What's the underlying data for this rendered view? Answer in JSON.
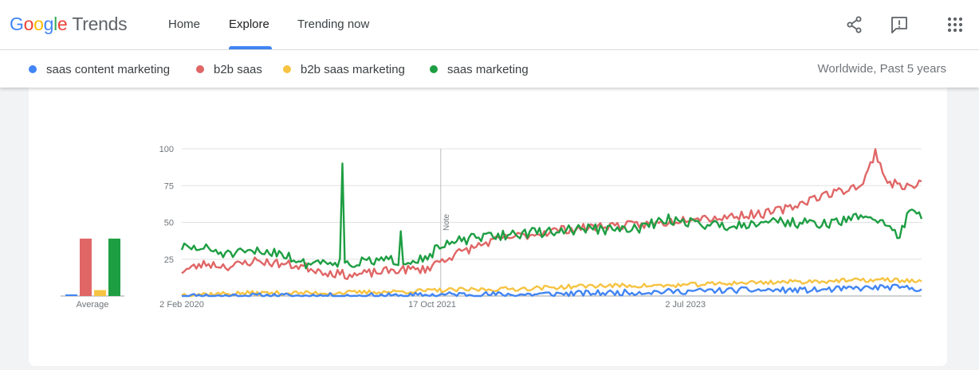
{
  "header": {
    "logo": {
      "google": [
        "G",
        "o",
        "o",
        "g",
        "l",
        "e"
      ],
      "google_colors": [
        "#4285f4",
        "#ea4335",
        "#fbbc05",
        "#4285f4",
        "#34a853",
        "#ea4335"
      ],
      "product": "Trends"
    },
    "tabs": [
      {
        "label": "Home",
        "active": false
      },
      {
        "label": "Explore",
        "active": true
      },
      {
        "label": "Trending now",
        "active": false
      }
    ],
    "icons": [
      "share-icon",
      "feedback-icon",
      "apps-grid-icon"
    ],
    "accent": "#4285f4"
  },
  "compare": {
    "terms": [
      {
        "label": "saas content marketing",
        "color": "#4285f4"
      },
      {
        "label": "b2b saas",
        "color": "#e06666"
      },
      {
        "label": "b2b saas marketing",
        "color": "#f6c342"
      },
      {
        "label": "saas marketing",
        "color": "#1e9e43"
      }
    ],
    "scope": "Worldwide, Past 5 years"
  },
  "chart_data": {
    "type": "line",
    "x_ticks": [
      "2 Feb 2020",
      "17 Oct 2021",
      "2 Jul 2023"
    ],
    "y_ticks": [
      100,
      75,
      50,
      25
    ],
    "ylim": [
      0,
      100
    ],
    "xlim": [
      "2 Feb 2020",
      "26 Jan 2025"
    ],
    "grid": true,
    "annotation": {
      "label": "Note",
      "x": "7 Nov 2021"
    },
    "averages": {
      "label": "Average",
      "values": [
        1,
        39,
        4,
        39
      ]
    },
    "series": [
      {
        "name": "saas content marketing",
        "color": "#4285f4",
        "keypoints": [
          [
            0,
            0
          ],
          [
            30,
            0
          ],
          [
            60,
            0
          ],
          [
            90,
            0
          ],
          [
            110,
            1
          ],
          [
            140,
            1
          ],
          [
            170,
            2
          ],
          [
            200,
            3
          ],
          [
            230,
            4
          ],
          [
            260,
            4
          ],
          [
            290,
            6
          ],
          [
            304,
            5
          ]
        ],
        "jitter": 2,
        "seed": 11
      },
      {
        "name": "b2b saas",
        "color": "#e06666",
        "keypoints": [
          [
            0,
            17
          ],
          [
            10,
            22
          ],
          [
            20,
            20
          ],
          [
            30,
            24
          ],
          [
            40,
            22
          ],
          [
            50,
            20
          ],
          [
            60,
            16
          ],
          [
            70,
            14
          ],
          [
            80,
            16
          ],
          [
            90,
            18
          ],
          [
            100,
            18
          ],
          [
            105,
            23
          ],
          [
            115,
            30
          ],
          [
            125,
            36
          ],
          [
            135,
            40
          ],
          [
            145,
            42
          ],
          [
            155,
            45
          ],
          [
            165,
            46
          ],
          [
            175,
            48
          ],
          [
            185,
            48
          ],
          [
            200,
            50
          ],
          [
            210,
            54
          ],
          [
            220,
            53
          ],
          [
            230,
            55
          ],
          [
            240,
            56
          ],
          [
            250,
            60
          ],
          [
            260,
            67
          ],
          [
            270,
            71
          ],
          [
            280,
            76
          ],
          [
            285,
            98
          ],
          [
            290,
            77
          ],
          [
            300,
            74
          ],
          [
            304,
            77
          ]
        ],
        "jitter": 3,
        "seed": 23
      },
      {
        "name": "b2b saas marketing",
        "color": "#f6c342",
        "keypoints": [
          [
            0,
            1
          ],
          [
            30,
            2
          ],
          [
            60,
            2
          ],
          [
            90,
            3
          ],
          [
            110,
            4
          ],
          [
            140,
            5
          ],
          [
            170,
            7
          ],
          [
            200,
            7
          ],
          [
            230,
            9
          ],
          [
            260,
            10
          ],
          [
            290,
            11
          ],
          [
            304,
            10
          ]
        ],
        "jitter": 1.5,
        "seed": 37
      },
      {
        "name": "saas marketing",
        "color": "#1e9e43",
        "keypoints": [
          [
            0,
            33
          ],
          [
            10,
            32
          ],
          [
            20,
            28
          ],
          [
            30,
            30
          ],
          [
            40,
            30
          ],
          [
            50,
            22
          ],
          [
            60,
            24
          ],
          [
            70,
            22
          ],
          [
            80,
            24
          ],
          [
            90,
            24
          ],
          [
            100,
            26
          ],
          [
            105,
            32
          ],
          [
            115,
            38
          ],
          [
            125,
            40
          ],
          [
            135,
            42
          ],
          [
            145,
            43
          ],
          [
            155,
            44
          ],
          [
            165,
            46
          ],
          [
            175,
            45
          ],
          [
            185,
            45
          ],
          [
            200,
            52
          ],
          [
            210,
            50
          ],
          [
            220,
            48
          ],
          [
            230,
            48
          ],
          [
            240,
            52
          ],
          [
            250,
            50
          ],
          [
            260,
            49
          ],
          [
            270,
            50
          ],
          [
            280,
            55
          ],
          [
            290,
            49
          ],
          [
            295,
            40
          ],
          [
            300,
            62
          ],
          [
            304,
            54
          ]
        ],
        "jitter": 3.5,
        "seed": 51,
        "spikes": [
          [
            66,
            90
          ],
          [
            90,
            44
          ]
        ]
      }
    ]
  }
}
